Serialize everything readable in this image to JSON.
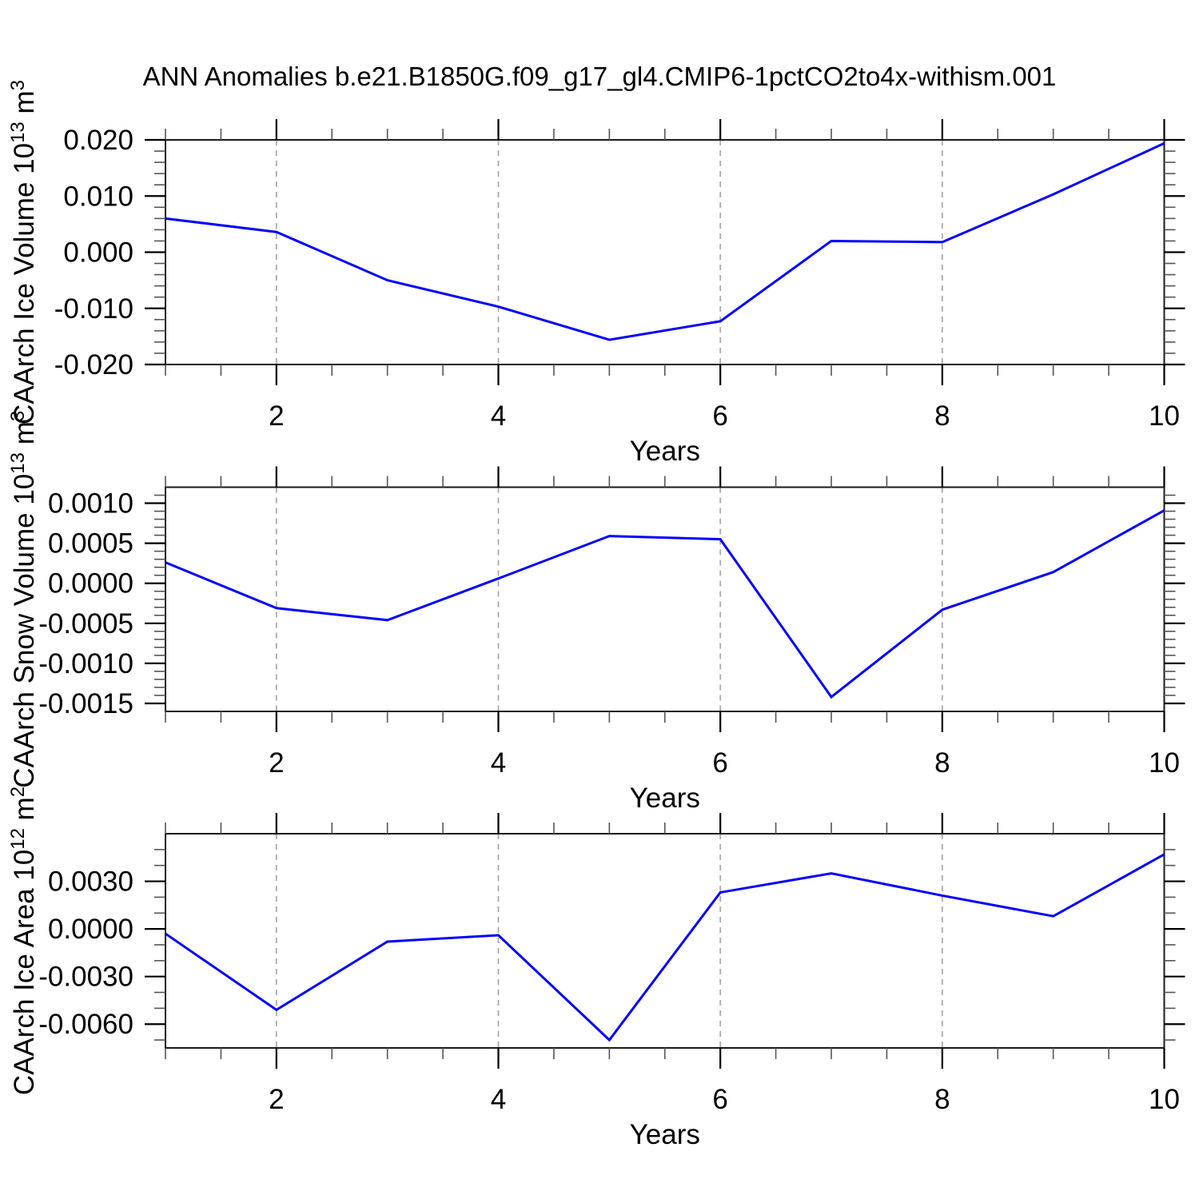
{
  "title": "ANN Anomalies b.e21.B1850G.f09_g17_gl4.CMIP6-1pctCO2to4x-withism.001",
  "style": {
    "line_color": "#0000FF",
    "grid_color": "#AAAAAA",
    "frame_color": "#1a1a1a",
    "minor_tick_color": "#555555",
    "major_tick_color": "#000000"
  },
  "chart_data": [
    {
      "type": "line",
      "panel": "top",
      "ylabel": "CAArch Ice Volume 10^13 m^3",
      "ylabel_parts": [
        {
          "t": "CAArch Ice Volume 10",
          "sup": false
        },
        {
          "t": "13",
          "sup": true
        },
        {
          "t": " m",
          "sup": false
        },
        {
          "t": "3",
          "sup": true
        }
      ],
      "xlabel": "Years",
      "x": [
        1,
        2,
        3,
        4,
        5,
        6,
        7,
        8,
        9,
        10
      ],
      "values": [
        0.006,
        0.0036,
        -0.005,
        -0.0097,
        -0.0156,
        -0.0123,
        0.002,
        0.0018,
        0.0103,
        0.0194
      ],
      "xlim": [
        1,
        10
      ],
      "ylim": [
        -0.02,
        0.02
      ],
      "ytick_values": [
        0.02,
        0.01,
        0.0,
        -0.01,
        -0.02
      ],
      "ytick_labels": [
        "0.020",
        "0.010",
        "0.000",
        "-0.010",
        "-0.020"
      ],
      "ytick_minor_step": 0.002,
      "xtick_values": [
        2,
        4,
        6,
        8,
        10
      ],
      "xtick_labels": [
        "2",
        "4",
        "6",
        "8",
        "10"
      ],
      "xtick_minor_step": 0.5,
      "grid_x": [
        2,
        4,
        6,
        8
      ],
      "grid": "vertical-dashed",
      "legend": "none"
    },
    {
      "type": "line",
      "panel": "middle",
      "ylabel": "CAArch Snow Volume 10^13 m^3",
      "ylabel_parts": [
        {
          "t": "CAArch Snow Volume 10",
          "sup": false
        },
        {
          "t": "13",
          "sup": true
        },
        {
          "t": " m",
          "sup": false
        },
        {
          "t": "3",
          "sup": true
        }
      ],
      "xlabel": "Years",
      "x": [
        1,
        2,
        3,
        4,
        5,
        6,
        7,
        8,
        9,
        10
      ],
      "values": [
        0.00026,
        -0.00031,
        -0.00046,
        6e-05,
        0.00059,
        0.00055,
        -0.00142,
        -0.00033,
        0.00014,
        0.00091
      ],
      "xlim": [
        1,
        10
      ],
      "ylim": [
        -0.0016,
        0.0012
      ],
      "ytick_values": [
        0.001,
        0.0005,
        0.0,
        -0.0005,
        -0.001,
        -0.0015
      ],
      "ytick_labels": [
        "0.0010",
        "0.0005",
        "0.0000",
        "-0.0005",
        "-0.0010",
        "-0.0015"
      ],
      "ytick_minor_step": 0.0001,
      "xtick_values": [
        2,
        4,
        6,
        8,
        10
      ],
      "xtick_labels": [
        "2",
        "4",
        "6",
        "8",
        "10"
      ],
      "xtick_minor_step": 0.5,
      "grid_x": [
        2,
        4,
        6,
        8
      ],
      "grid": "vertical-dashed",
      "legend": "none"
    },
    {
      "type": "line",
      "panel": "bottom",
      "ylabel": "CAArch Ice Area 10^12 m^2",
      "ylabel_parts": [
        {
          "t": "CAArch Ice Area 10",
          "sup": false
        },
        {
          "t": "12",
          "sup": true
        },
        {
          "t": " m",
          "sup": false
        },
        {
          "t": "2",
          "sup": true
        }
      ],
      "xlabel": "Years",
      "x": [
        1,
        2,
        3,
        4,
        5,
        6,
        7,
        8,
        9,
        10
      ],
      "values": [
        -0.0003,
        -0.0051,
        -0.0008,
        -0.0004,
        -0.007,
        0.0023,
        0.0035,
        0.0021,
        0.0008,
        0.0047
      ],
      "xlim": [
        1,
        10
      ],
      "ylim": [
        -0.0075,
        0.006
      ],
      "ytick_values": [
        0.003,
        0.0,
        -0.003,
        -0.006
      ],
      "ytick_labels": [
        "0.0030",
        "0.0000",
        "-0.0030",
        "-0.0060"
      ],
      "ytick_minor_step": 0.001,
      "xtick_values": [
        2,
        4,
        6,
        8,
        10
      ],
      "xtick_labels": [
        "2",
        "4",
        "6",
        "8",
        "10"
      ],
      "xtick_minor_step": 0.5,
      "grid_x": [
        2,
        4,
        6,
        8
      ],
      "grid": "vertical-dashed",
      "legend": "none"
    }
  ]
}
